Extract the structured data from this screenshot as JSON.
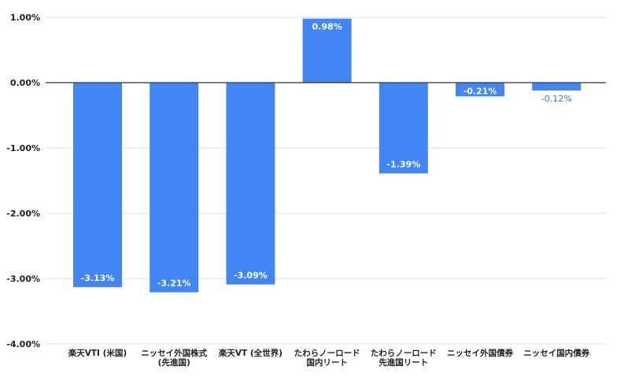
{
  "chart_data": {
    "type": "bar",
    "categories": [
      [
        "楽天VTI (米国)"
      ],
      [
        "ニッセイ外国株式",
        "(先進国)"
      ],
      [
        "楽天VT (全世界)"
      ],
      [
        "たわらノーロード",
        "国内リート"
      ],
      [
        "たわらノーロード",
        "先進国リート"
      ],
      [
        "ニッセイ外国債券"
      ],
      [
        "ニッセイ国内債券"
      ]
    ],
    "values": [
      -3.13,
      -3.21,
      -3.09,
      0.98,
      -1.39,
      -0.21,
      -0.12
    ],
    "data_labels": [
      "-3.13%",
      "-3.21%",
      "-3.09%",
      "0.98%",
      "-1.39%",
      "-0.21%",
      "-0.12%"
    ],
    "ylim": [
      -4,
      1
    ],
    "yticks": [
      1,
      0,
      -1,
      -2,
      -3,
      -4
    ],
    "ytick_labels": [
      "1.00%",
      "0.00%",
      "-1.00%",
      "-2.00%",
      "-3.00%",
      "-4.00%"
    ],
    "grid": true,
    "legend": "none",
    "bar_color": "#4285f4"
  }
}
